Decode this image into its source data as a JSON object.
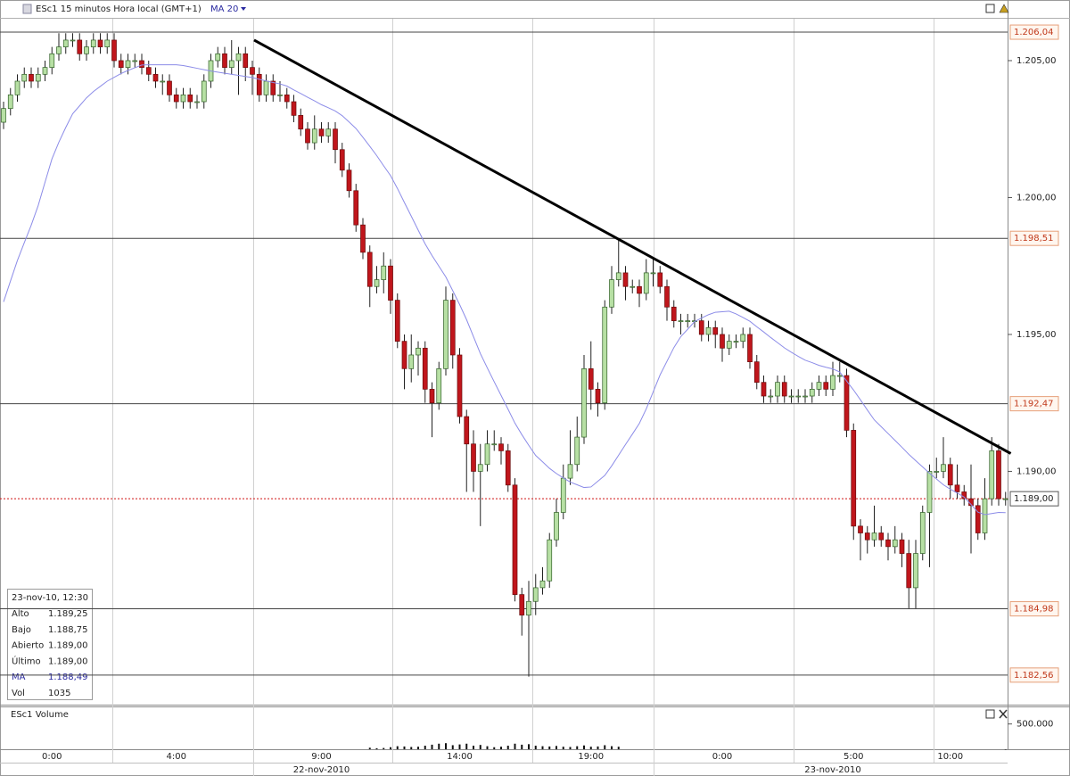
{
  "header": {
    "symbol_label": "ESc1 15 minutos Hora local (GMT+1)",
    "indicator_label": "MA 20"
  },
  "chart_data": {
    "type": "candlestick",
    "categories": [
      null,
      null,
      null,
      null,
      null,
      null,
      null,
      "0:00",
      null,
      null,
      null,
      null,
      null,
      null,
      null,
      null,
      null,
      null,
      null,
      null,
      null,
      null,
      null,
      null,
      null,
      "4:00",
      null,
      null,
      null,
      null,
      null,
      null,
      null,
      null,
      null,
      null,
      null,
      null,
      null,
      null,
      null,
      null,
      null,
      null,
      null,
      null,
      "9:00",
      null,
      null,
      null,
      null,
      null,
      null,
      null,
      null,
      null,
      null,
      null,
      null,
      null,
      null,
      null,
      null,
      null,
      null,
      null,
      "14:00",
      null,
      null,
      null,
      null,
      null,
      null,
      null,
      null,
      null,
      null,
      null,
      null,
      null,
      null,
      null,
      null,
      null,
      null,
      "19:00",
      null,
      null,
      null,
      null,
      null,
      null,
      null,
      null,
      null,
      null,
      null,
      null,
      null,
      null,
      null,
      null,
      null,
      null,
      "0:00",
      null,
      null,
      null,
      null,
      null,
      null,
      null,
      null,
      null,
      null,
      null,
      null,
      null,
      null,
      null,
      null,
      null,
      null,
      "5:00",
      null,
      null,
      null,
      null,
      null,
      null,
      null,
      null,
      null,
      null,
      null,
      null,
      null,
      "10:00",
      null,
      null,
      null,
      null,
      null,
      null,
      null,
      null
    ],
    "dates": [
      null,
      null,
      null,
      null,
      null,
      null,
      null,
      null,
      null,
      null,
      null,
      null,
      null,
      null,
      null,
      null,
      null,
      null,
      null,
      null,
      null,
      null,
      null,
      null,
      null,
      null,
      null,
      null,
      null,
      null,
      null,
      null,
      null,
      null,
      null,
      null,
      null,
      null,
      null,
      null,
      null,
      null,
      null,
      null,
      null,
      null,
      "22-nov-2010",
      null,
      null,
      null,
      null,
      null,
      null,
      null,
      null,
      null,
      null,
      null,
      null,
      null,
      null,
      null,
      null,
      null,
      null,
      null,
      null,
      null,
      null,
      null,
      null,
      null,
      null,
      null,
      null,
      null,
      null,
      null,
      null,
      null,
      null,
      null,
      null,
      null,
      null,
      null,
      null,
      null,
      null,
      null,
      null,
      null,
      null,
      null,
      null,
      null,
      null,
      null,
      null,
      null,
      null,
      null,
      null,
      null,
      null,
      null,
      null,
      null,
      null,
      null,
      null,
      null,
      null,
      null,
      null,
      null,
      null,
      null,
      null,
      null,
      "23-nov-2010",
      null,
      null,
      null,
      null,
      null,
      null,
      null,
      null,
      null,
      null,
      null,
      null,
      null,
      null,
      null,
      null,
      null,
      null,
      null,
      null,
      null,
      null,
      null,
      null,
      null
    ],
    "open": [
      1202.75,
      1203.25,
      1203.75,
      1204.25,
      1204.5,
      1204.25,
      1204.5,
      1204.75,
      1205.25,
      1205.5,
      1205.75,
      1205.75,
      1205.25,
      1205.5,
      1205.75,
      1205.5,
      1205.75,
      1205.0,
      1204.75,
      1205.0,
      1205.0,
      1204.75,
      1204.5,
      1204.25,
      1204.25,
      1203.75,
      1203.5,
      1203.75,
      1203.5,
      1203.5,
      1204.25,
      1205.0,
      1205.25,
      1204.75,
      1205.0,
      1205.25,
      1204.75,
      1204.5,
      1203.75,
      1204.25,
      1203.75,
      1203.75,
      1203.5,
      1203.0,
      1202.5,
      1202.0,
      1202.5,
      1202.25,
      1202.5,
      1201.75,
      1201.0,
      1200.25,
      1199.0,
      1198.0,
      1196.75,
      1197.0,
      1197.5,
      1196.25,
      1194.75,
      1193.75,
      1194.25,
      1194.5,
      1193.0,
      1192.5,
      1193.75,
      1196.25,
      1194.25,
      1192.0,
      1191.0,
      1190.0,
      1190.25,
      1191.0,
      1191.0,
      1190.75,
      1189.5,
      1185.5,
      1184.75,
      1185.25,
      1185.75,
      1186.0,
      1187.5,
      1188.5,
      1189.75,
      1190.25,
      1191.25,
      1193.75,
      1193.0,
      1192.5,
      1196.0,
      1197.0,
      1197.25,
      1196.75,
      1196.75,
      1196.5,
      1197.25,
      1197.25,
      1196.75,
      1196.0,
      1195.5,
      1195.5,
      1195.5,
      1195.5,
      1195.0,
      1195.25,
      1195.0,
      1194.5,
      1194.75,
      1194.75,
      1195.0,
      1194.0,
      1193.25,
      1192.75,
      1192.75,
      1193.25,
      1192.75,
      1192.75,
      1192.75,
      1192.75,
      1193.0,
      1193.25,
      1193.0,
      1193.5,
      1193.5,
      1191.5,
      1188.0,
      1187.75,
      1187.5,
      1187.75,
      1187.5,
      1187.25,
      1187.5,
      1187.0,
      1185.75,
      1187.0,
      1188.5,
      1190.0,
      1190.0,
      1190.25,
      1189.5,
      1189.25,
      1189.0,
      1188.75,
      1187.75,
      1189.0,
      1190.75,
      1189.0
    ],
    "high": [
      1203.5,
      1204.0,
      1204.5,
      1204.75,
      1204.75,
      1204.75,
      1205.0,
      1205.5,
      1206.0,
      1206.0,
      1206.0,
      1206.0,
      1205.75,
      1206.0,
      1206.0,
      1206.0,
      1206.0,
      1205.25,
      1205.25,
      1205.25,
      1205.25,
      1205.0,
      1204.75,
      1204.5,
      1204.5,
      1204.0,
      1204.0,
      1204.0,
      1203.75,
      1204.5,
      1205.25,
      1205.5,
      1205.5,
      1205.75,
      1205.5,
      1205.5,
      1205.0,
      1204.75,
      1204.5,
      1204.5,
      1204.25,
      1204.0,
      1203.75,
      1203.25,
      1202.75,
      1203.0,
      1202.75,
      1202.75,
      1202.75,
      1202.0,
      1201.25,
      1200.5,
      1199.25,
      1198.25,
      1197.5,
      1198.0,
      1197.75,
      1196.5,
      1195.0,
      1195.0,
      1194.75,
      1194.75,
      1193.25,
      1194.0,
      1196.75,
      1196.5,
      1194.5,
      1192.25,
      1191.5,
      1191.0,
      1191.5,
      1191.5,
      1191.25,
      1191.0,
      1189.75,
      1185.75,
      1186.0,
      1186.25,
      1186.5,
      1187.75,
      1189.0,
      1190.25,
      1191.5,
      1192.0,
      1194.25,
      1194.75,
      1193.25,
      1196.25,
      1197.5,
      1198.5,
      1197.5,
      1197.0,
      1197.0,
      1197.75,
      1197.75,
      1197.5,
      1197.0,
      1196.25,
      1195.75,
      1195.75,
      1195.75,
      1195.75,
      1195.5,
      1195.5,
      1195.25,
      1195.0,
      1195.0,
      1195.25,
      1195.25,
      1194.25,
      1193.5,
      1193.0,
      1193.5,
      1193.5,
      1193.0,
      1193.0,
      1193.0,
      1193.25,
      1193.5,
      1193.5,
      1194.0,
      1194.0,
      1193.75,
      1191.75,
      1188.25,
      1188.0,
      1188.75,
      1188.0,
      1187.75,
      1188.0,
      1187.75,
      1187.5,
      1187.5,
      1188.75,
      1190.25,
      1190.5,
      1191.25,
      1190.5,
      1190.25,
      1189.5,
      1190.25,
      1189.0,
      1189.75,
      1191.25,
      1191.0,
      1189.25
    ],
    "low": [
      1202.5,
      1203.0,
      1203.5,
      1204.0,
      1204.0,
      1204.0,
      1204.25,
      1204.5,
      1205.0,
      1205.25,
      1205.5,
      1205.0,
      1205.0,
      1205.25,
      1205.25,
      1205.25,
      1204.75,
      1204.5,
      1204.5,
      1204.75,
      1204.5,
      1204.25,
      1204.0,
      1203.75,
      1203.5,
      1203.25,
      1203.25,
      1203.25,
      1203.25,
      1203.25,
      1204.0,
      1204.75,
      1204.5,
      1204.5,
      1203.75,
      1204.25,
      1203.75,
      1203.5,
      1203.5,
      1203.5,
      1203.5,
      1203.25,
      1202.75,
      1202.25,
      1201.75,
      1201.75,
      1202.0,
      1202.0,
      1201.25,
      1200.75,
      1200.0,
      1198.75,
      1197.75,
      1196.0,
      1196.5,
      1196.5,
      1195.75,
      1194.5,
      1193.0,
      1193.25,
      1193.5,
      1192.5,
      1191.25,
      1192.25,
      1193.5,
      1193.75,
      1191.75,
      1189.25,
      1189.25,
      1188.0,
      1190.0,
      1190.75,
      1190.25,
      1189.25,
      1185.25,
      1184.0,
      1182.5,
      1184.75,
      1185.5,
      1185.75,
      1187.25,
      1188.25,
      1189.5,
      1190.0,
      1191.0,
      1192.25,
      1192.0,
      1192.25,
      1195.75,
      1196.75,
      1196.25,
      1196.5,
      1196.0,
      1196.25,
      1196.75,
      1196.5,
      1195.5,
      1195.25,
      1195.0,
      1195.25,
      1195.25,
      1194.75,
      1194.75,
      1194.5,
      1194.0,
      1194.25,
      1194.5,
      1194.5,
      1193.75,
      1193.0,
      1192.5,
      1192.5,
      1192.5,
      1192.5,
      1192.5,
      1192.5,
      1192.5,
      1192.5,
      1192.75,
      1192.75,
      1192.75,
      1193.25,
      1191.25,
      1187.5,
      1186.75,
      1187.0,
      1187.25,
      1187.25,
      1186.75,
      1187.0,
      1186.5,
      1185.0,
      1185.0,
      1186.75,
      1186.5,
      1189.75,
      1189.75,
      1189.0,
      1189.0,
      1188.75,
      1187.0,
      1187.5,
      1187.5,
      1188.75,
      1188.75,
      1188.75
    ],
    "close": [
      1203.25,
      1203.75,
      1204.25,
      1204.5,
      1204.25,
      1204.5,
      1204.75,
      1205.25,
      1205.5,
      1205.75,
      1205.75,
      1205.25,
      1205.5,
      1205.75,
      1205.5,
      1205.75,
      1205.0,
      1204.75,
      1205.0,
      1205.0,
      1204.75,
      1204.5,
      1204.25,
      1204.25,
      1203.75,
      1203.5,
      1203.75,
      1203.5,
      1203.5,
      1204.25,
      1205.0,
      1205.25,
      1204.75,
      1205.0,
      1205.25,
      1204.75,
      1204.5,
      1203.75,
      1204.25,
      1203.75,
      1203.75,
      1203.5,
      1203.0,
      1202.5,
      1202.0,
      1202.5,
      1202.25,
      1202.5,
      1201.75,
      1201.0,
      1200.25,
      1199.0,
      1198.0,
      1196.75,
      1197.0,
      1197.5,
      1196.25,
      1194.75,
      1193.75,
      1194.25,
      1194.5,
      1193.0,
      1192.5,
      1193.75,
      1196.25,
      1194.25,
      1192.0,
      1191.0,
      1190.0,
      1190.25,
      1191.0,
      1191.0,
      1190.75,
      1189.5,
      1185.5,
      1184.75,
      1185.25,
      1185.75,
      1186.0,
      1187.5,
      1188.5,
      1189.75,
      1190.25,
      1191.25,
      1193.75,
      1193.0,
      1192.5,
      1196.0,
      1197.0,
      1197.25,
      1196.75,
      1196.75,
      1196.5,
      1197.25,
      1197.25,
      1196.75,
      1196.0,
      1195.5,
      1195.5,
      1195.5,
      1195.5,
      1195.0,
      1195.25,
      1195.0,
      1194.5,
      1194.75,
      1194.75,
      1195.0,
      1194.0,
      1193.25,
      1192.75,
      1192.75,
      1193.25,
      1192.75,
      1192.75,
      1192.75,
      1192.75,
      1193.0,
      1193.25,
      1193.0,
      1193.5,
      1193.5,
      1191.5,
      1188.0,
      1187.75,
      1187.5,
      1187.75,
      1187.5,
      1187.25,
      1187.5,
      1187.0,
      1185.75,
      1187.0,
      1188.5,
      1190.0,
      1190.0,
      1190.25,
      1189.5,
      1189.25,
      1189.0,
      1188.75,
      1187.75,
      1189.0,
      1190.75,
      1189.0,
      1189.0
    ],
    "up_color": "#b7e0a4",
    "down_color": "#c0161c",
    "ma": {
      "color": "#8c8ce8",
      "values": [
        1196.19,
        1196.95,
        1197.7,
        1198.35,
        1198.99,
        1199.7,
        1200.56,
        1201.41,
        1202.02,
        1202.56,
        1203.06,
        1203.35,
        1203.64,
        1203.87,
        1204.06,
        1204.25,
        1204.39,
        1204.53,
        1204.64,
        1204.74,
        1204.84,
        1204.85,
        1204.85,
        1204.85,
        1204.85,
        1204.85,
        1204.82,
        1204.77,
        1204.72,
        1204.67,
        1204.62,
        1204.58,
        1204.54,
        1204.5,
        1204.46,
        1204.42,
        1204.38,
        1204.32,
        1204.26,
        1204.2,
        1204.15,
        1204.07,
        1203.93,
        1203.8,
        1203.66,
        1203.53,
        1203.39,
        1203.28,
        1203.16,
        1202.99,
        1202.76,
        1202.52,
        1202.2,
        1201.87,
        1201.53,
        1201.16,
        1200.8,
        1200.33,
        1199.82,
        1199.32,
        1198.81,
        1198.31,
        1197.88,
        1197.49,
        1197.1,
        1196.6,
        1196.09,
        1195.54,
        1194.92,
        1194.3,
        1193.78,
        1193.27,
        1192.77,
        1192.27,
        1191.76,
        1191.34,
        1190.95,
        1190.58,
        1190.35,
        1190.11,
        1189.92,
        1189.76,
        1189.61,
        1189.51,
        1189.41,
        1189.43,
        1189.64,
        1189.85,
        1190.2,
        1190.59,
        1190.98,
        1191.36,
        1191.75,
        1192.28,
        1192.9,
        1193.52,
        1194.02,
        1194.52,
        1194.92,
        1195.19,
        1195.47,
        1195.6,
        1195.72,
        1195.81,
        1195.83,
        1195.85,
        1195.75,
        1195.62,
        1195.48,
        1195.28,
        1195.09,
        1194.89,
        1194.7,
        1194.51,
        1194.35,
        1194.2,
        1194.06,
        1193.97,
        1193.87,
        1193.8,
        1193.74,
        1193.63,
        1193.3,
        1192.97,
        1192.61,
        1192.24,
        1191.88,
        1191.63,
        1191.38,
        1191.13,
        1190.88,
        1190.62,
        1190.39,
        1190.16,
        1189.93,
        1189.72,
        1189.51,
        1189.35,
        1189.21,
        1189.06,
        1188.79,
        1188.51,
        1188.42,
        1188.46,
        1188.5,
        1188.49
      ]
    },
    "ylim": [
      1181.48,
      1206.53
    ],
    "yticks": [
      {
        "value": 1205,
        "label": "1.205,00"
      },
      {
        "value": 1200,
        "label": "1.200,00"
      },
      {
        "value": 1195,
        "label": "1.195,00"
      },
      {
        "value": 1190,
        "label": "1.190,00"
      }
    ],
    "levels": [
      {
        "value": 1206.04,
        "label": "1.206,04"
      },
      {
        "value": 1198.51,
        "label": "1.198,51"
      },
      {
        "value": 1192.47,
        "label": "1.192,47"
      },
      {
        "value": 1184.98,
        "label": "1.184,98"
      },
      {
        "value": 1182.56,
        "label": "1.182,56"
      }
    ],
    "last": {
      "value": 1189,
      "label": "1.189,00"
    },
    "trendline": {
      "x": [
        36.25,
        145.75
      ],
      "values": [
        1205.75,
        1190.65
      ]
    },
    "volume": {
      "title": "ESc1 Volume",
      "ylim": [
        0,
        600000
      ],
      "yticks": [
        {
          "value": 500000,
          "label": "500.000"
        }
      ],
      "values": [
        null,
        null,
        null,
        null,
        null,
        null,
        null,
        null,
        null,
        null,
        null,
        null,
        null,
        null,
        null,
        null,
        null,
        null,
        null,
        null,
        null,
        null,
        null,
        null,
        null,
        null,
        null,
        null,
        null,
        null,
        null,
        null,
        null,
        null,
        null,
        null,
        null,
        null,
        null,
        null,
        null,
        null,
        null,
        null,
        null,
        null,
        null,
        null,
        null,
        null,
        null,
        null,
        null,
        30000,
        20000,
        25000,
        40000,
        60000,
        55000,
        45000,
        50000,
        70000,
        90000,
        110000,
        120000,
        80000,
        95000,
        110000,
        70000,
        85000,
        60000,
        40000,
        50000,
        70000,
        110000,
        90000,
        100000,
        70000,
        60000,
        55000,
        65000,
        50000,
        45000,
        60000,
        75000,
        50000,
        55000,
        80000,
        60000,
        50000,
        null,
        null,
        null,
        null,
        null,
        null,
        null,
        null,
        null,
        null,
        null,
        null,
        null,
        null,
        null,
        null,
        null,
        null,
        null,
        null,
        null,
        null,
        null,
        null,
        null,
        null,
        null,
        null,
        null,
        null,
        null,
        null,
        null,
        null,
        null,
        null,
        null,
        null,
        null,
        null,
        null,
        null,
        null,
        null,
        null,
        null,
        null,
        null,
        null,
        null,
        null,
        null,
        null,
        null,
        null,
        1035
      ]
    }
  },
  "info_box": {
    "title": "23-nov-10, 12:30",
    "rows": [
      [
        "Alto",
        "1.189,25"
      ],
      [
        "Bajo",
        "1.188,75"
      ],
      [
        "Abierto",
        "1.189,00"
      ],
      [
        "Último",
        "1.189,00"
      ],
      [
        "MA",
        "1.188,49"
      ],
      [
        "Vol",
        "1035"
      ]
    ]
  }
}
